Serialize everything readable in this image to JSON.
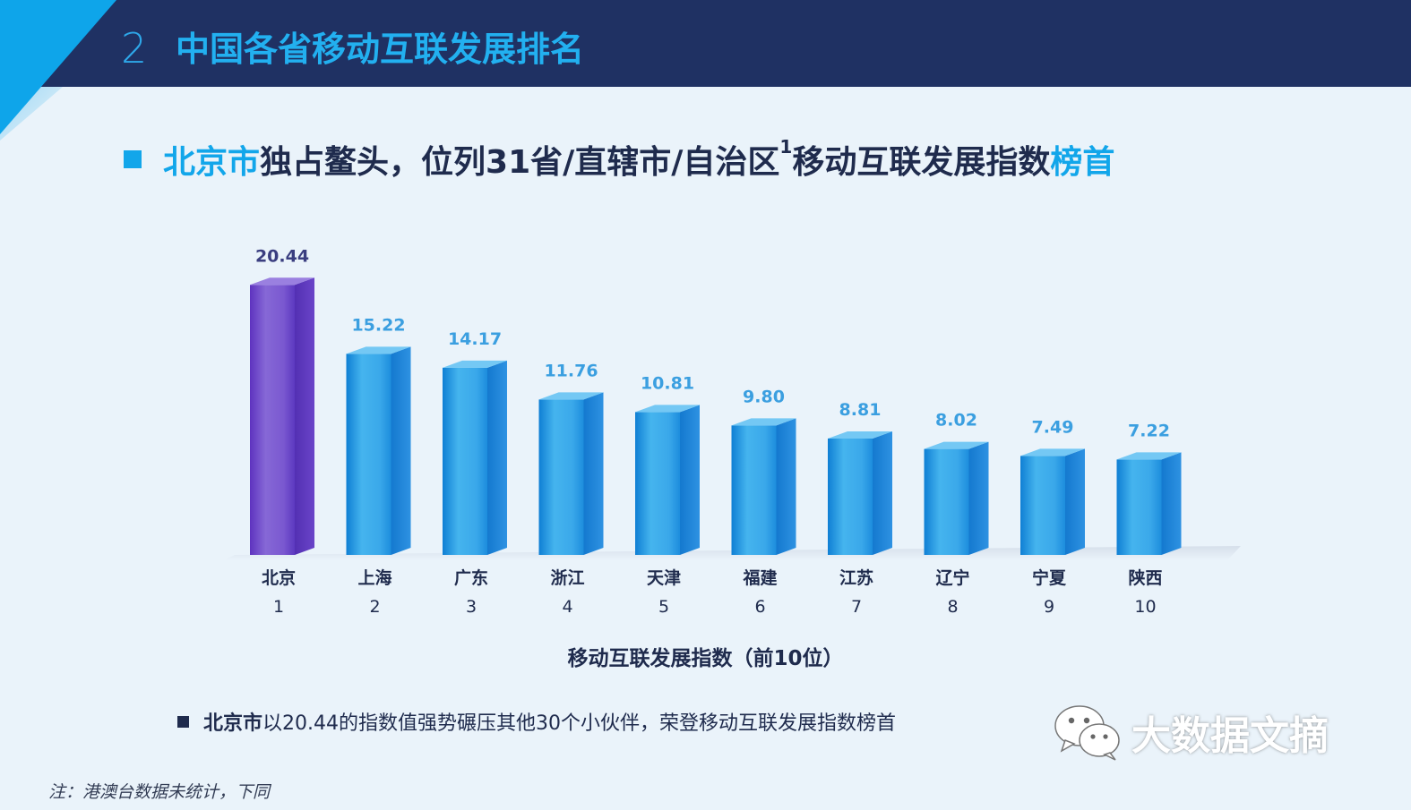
{
  "header": {
    "slide_number": "2",
    "title": "中国各省移动互联发展排名"
  },
  "subtitle": {
    "part1": "北京市",
    "part2": "独占鳌头，位列31省/直辖市/自治区",
    "sup": "1",
    "part3": "移动互联发展指数",
    "part4": "榜首"
  },
  "chart_data": {
    "type": "bar",
    "categories": [
      "北京",
      "上海",
      "广东",
      "浙江",
      "天津",
      "福建",
      "江苏",
      "辽宁",
      "宁夏",
      "陕西"
    ],
    "ranks": [
      "1",
      "2",
      "3",
      "4",
      "5",
      "6",
      "7",
      "8",
      "9",
      "10"
    ],
    "values": [
      20.44,
      15.22,
      14.17,
      11.76,
      10.81,
      9.8,
      8.81,
      8.02,
      7.49,
      7.22
    ],
    "value_labels": [
      "20.44",
      "15.22",
      "14.17",
      "11.76",
      "10.81",
      "9.80",
      "8.81",
      "8.02",
      "7.49",
      "7.22"
    ],
    "xlabel": "移动互联发展指数（前10位）",
    "ylim": [
      0,
      21
    ],
    "colors": {
      "highlight": "#6a45c8",
      "bar": "#2aa3ea",
      "label_highlight": "#3a3e80",
      "label": "#3b9fe0"
    }
  },
  "note": {
    "bold": "北京市",
    "text": "以20.44的指数值强势碾压其他30个小伙伴，荣登移动互联发展指数榜首"
  },
  "watermark": {
    "icon": "wechat-icon",
    "text": "大数据文摘"
  },
  "footnote": "注：港澳台数据未统计，下同"
}
